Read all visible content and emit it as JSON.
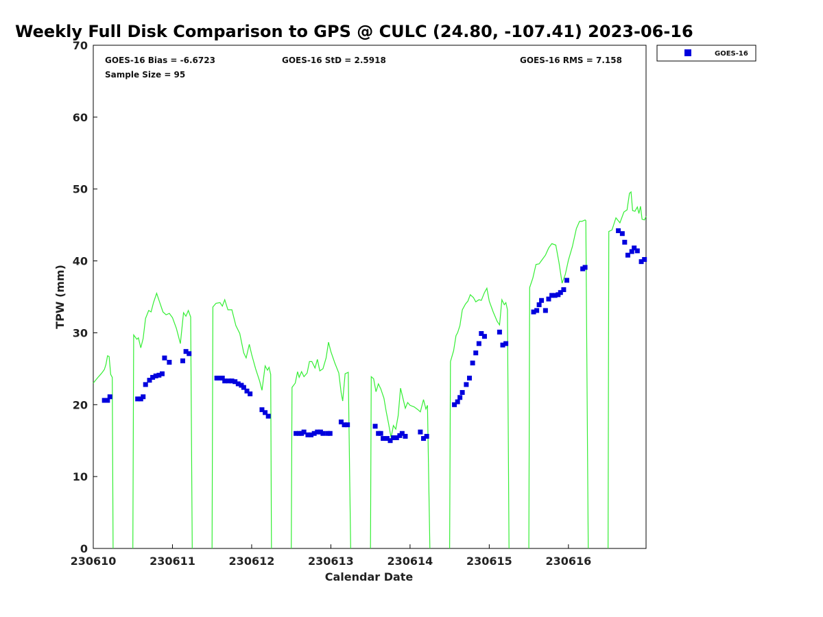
{
  "chart_data": {
    "type": "scatter",
    "title": "Weekly Full Disk Comparison to GPS @ CULC (24.80, -107.41) 2023-06-16",
    "xlabel": "Calendar Date",
    "ylabel": "TPW (mm)",
    "xlim": [
      0,
      6.98
    ],
    "ylim": [
      0,
      70
    ],
    "x_ticks": [
      {
        "value": 0,
        "label": "230610"
      },
      {
        "value": 1,
        "label": "230611"
      },
      {
        "value": 2,
        "label": "230612"
      },
      {
        "value": 3,
        "label": "230613"
      },
      {
        "value": 4,
        "label": "230614"
      },
      {
        "value": 5,
        "label": "230615"
      },
      {
        "value": 6,
        "label": "230616"
      }
    ],
    "y_ticks": [
      0,
      10,
      20,
      30,
      40,
      50,
      60,
      70
    ],
    "grid": false,
    "legend_position": "top-right, outside plot",
    "stats": {
      "bias": "GOES-16 Bias = -6.6723",
      "std": "GOES-16 StD = 2.5918",
      "rms": "GOES-16 RMS = 7.158",
      "sample_size": "Sample Size = 95"
    },
    "colors": {
      "goes": "#0000dd",
      "gps": "#33ee33"
    },
    "series": [
      {
        "name": "GOES-16",
        "kind": "scatter",
        "points": [
          [
            0.14,
            20.6
          ],
          [
            0.18,
            20.6
          ],
          [
            0.21,
            21.1
          ],
          [
            0.56,
            20.8
          ],
          [
            0.6,
            20.8
          ],
          [
            0.63,
            21.1
          ],
          [
            0.66,
            22.8
          ],
          [
            0.71,
            23.4
          ],
          [
            0.75,
            23.8
          ],
          [
            0.79,
            24
          ],
          [
            0.83,
            24.1
          ],
          [
            0.87,
            24.3
          ],
          [
            0.9,
            26.5
          ],
          [
            0.96,
            25.9
          ],
          [
            1.13,
            26.1
          ],
          [
            1.17,
            27.4
          ],
          [
            1.21,
            27.1
          ],
          [
            1.56,
            23.7
          ],
          [
            1.6,
            23.7
          ],
          [
            1.63,
            23.7
          ],
          [
            1.66,
            23.3
          ],
          [
            1.71,
            23.3
          ],
          [
            1.75,
            23.3
          ],
          [
            1.79,
            23.2
          ],
          [
            1.83,
            22.9
          ],
          [
            1.87,
            22.7
          ],
          [
            1.9,
            22.4
          ],
          [
            1.94,
            21.9
          ],
          [
            1.98,
            21.5
          ],
          [
            2.13,
            19.3
          ],
          [
            2.17,
            18.9
          ],
          [
            2.21,
            18.4
          ],
          [
            2.56,
            16
          ],
          [
            2.6,
            16
          ],
          [
            2.63,
            16
          ],
          [
            2.66,
            16.2
          ],
          [
            2.71,
            15.8
          ],
          [
            2.75,
            15.8
          ],
          [
            2.79,
            16
          ],
          [
            2.83,
            16.2
          ],
          [
            2.87,
            16.2
          ],
          [
            2.9,
            16
          ],
          [
            2.96,
            16
          ],
          [
            2.99,
            16
          ],
          [
            3.13,
            17.6
          ],
          [
            3.17,
            17.2
          ],
          [
            3.21,
            17.2
          ],
          [
            3.56,
            17
          ],
          [
            3.6,
            16
          ],
          [
            3.63,
            16
          ],
          [
            3.66,
            15.3
          ],
          [
            3.71,
            15.3
          ],
          [
            3.75,
            15
          ],
          [
            3.79,
            15.4
          ],
          [
            3.83,
            15.4
          ],
          [
            3.87,
            15.7
          ],
          [
            3.9,
            16
          ],
          [
            3.94,
            15.6
          ],
          [
            4.13,
            16.2
          ],
          [
            4.17,
            15.3
          ],
          [
            4.21,
            15.6
          ],
          [
            4.56,
            20
          ],
          [
            4.6,
            20.4
          ],
          [
            4.63,
            21
          ],
          [
            4.66,
            21.7
          ],
          [
            4.71,
            22.8
          ],
          [
            4.75,
            23.7
          ],
          [
            4.79,
            25.8
          ],
          [
            4.83,
            27.2
          ],
          [
            4.87,
            28.5
          ],
          [
            4.9,
            29.9
          ],
          [
            4.94,
            29.5
          ],
          [
            5.13,
            30.1
          ],
          [
            5.17,
            28.3
          ],
          [
            5.21,
            28.5
          ],
          [
            5.56,
            32.9
          ],
          [
            5.6,
            33.1
          ],
          [
            5.63,
            33.9
          ],
          [
            5.66,
            34.5
          ],
          [
            5.71,
            33.1
          ],
          [
            5.75,
            34.7
          ],
          [
            5.79,
            35.2
          ],
          [
            5.83,
            35.2
          ],
          [
            5.87,
            35.3
          ],
          [
            5.9,
            35.6
          ],
          [
            5.94,
            36
          ],
          [
            5.98,
            37.3
          ],
          [
            6.18,
            38.9
          ],
          [
            6.21,
            39.1
          ],
          [
            6.63,
            44.2
          ],
          [
            6.68,
            43.8
          ],
          [
            6.71,
            42.6
          ],
          [
            6.75,
            40.8
          ],
          [
            6.8,
            41.3
          ],
          [
            6.83,
            41.8
          ],
          [
            6.87,
            41.4
          ],
          [
            6.92,
            39.9
          ],
          [
            6.96,
            40.2
          ]
        ]
      },
      {
        "name": "",
        "kind": "line",
        "segments": [
          [
            [
              0,
              23
            ],
            [
              0.06,
              23.8
            ],
            [
              0.1,
              24.3
            ],
            [
              0.12,
              24.6
            ],
            [
              0.14,
              24.9
            ],
            [
              0.16,
              25.6
            ],
            [
              0.18,
              26.8
            ],
            [
              0.2,
              26.7
            ],
            [
              0.22,
              24.2
            ],
            [
              0.24,
              23.8
            ],
            [
              0.25,
              0
            ]
          ],
          [
            [
              0.5,
              0
            ],
            [
              0.51,
              29.7
            ],
            [
              0.55,
              29.1
            ],
            [
              0.57,
              29.3
            ],
            [
              0.6,
              27.9
            ],
            [
              0.63,
              29.2
            ],
            [
              0.66,
              32
            ],
            [
              0.7,
              33.1
            ],
            [
              0.73,
              32.9
            ],
            [
              0.76,
              34.2
            ],
            [
              0.8,
              35.5
            ],
            [
              0.84,
              34.2
            ],
            [
              0.88,
              32.9
            ],
            [
              0.92,
              32.5
            ],
            [
              0.96,
              32.7
            ],
            [
              1,
              32.1
            ],
            [
              1.05,
              30.6
            ],
            [
              1.1,
              28.5
            ],
            [
              1.14,
              32.8
            ],
            [
              1.17,
              32.3
            ],
            [
              1.2,
              33.1
            ],
            [
              1.23,
              32.2
            ],
            [
              1.25,
              0
            ]
          ],
          [
            [
              1.5,
              0
            ],
            [
              1.51,
              33.6
            ],
            [
              1.55,
              34.1
            ],
            [
              1.6,
              34.2
            ],
            [
              1.63,
              33.7
            ],
            [
              1.66,
              34.6
            ],
            [
              1.7,
              33.2
            ],
            [
              1.75,
              33.2
            ],
            [
              1.8,
              31
            ],
            [
              1.85,
              29.9
            ],
            [
              1.9,
              27.2
            ],
            [
              1.93,
              26.5
            ],
            [
              1.97,
              28.4
            ],
            [
              2,
              27
            ],
            [
              2.05,
              25
            ],
            [
              2.1,
              23.3
            ],
            [
              2.13,
              22
            ],
            [
              2.17,
              25.4
            ],
            [
              2.2,
              24.8
            ],
            [
              2.22,
              25.2
            ],
            [
              2.24,
              24.2
            ],
            [
              2.25,
              0
            ]
          ],
          [
            [
              2.5,
              0
            ],
            [
              2.51,
              22.4
            ],
            [
              2.55,
              23
            ],
            [
              2.58,
              24.6
            ],
            [
              2.6,
              23.8
            ],
            [
              2.63,
              24.6
            ],
            [
              2.66,
              23.9
            ],
            [
              2.7,
              24.4
            ],
            [
              2.73,
              26
            ],
            [
              2.76,
              26
            ],
            [
              2.8,
              25.1
            ],
            [
              2.83,
              26.3
            ],
            [
              2.86,
              24.7
            ],
            [
              2.9,
              25
            ],
            [
              2.94,
              26.5
            ],
            [
              2.97,
              28.7
            ],
            [
              3,
              27.4
            ],
            [
              3.05,
              25.8
            ],
            [
              3.1,
              24.4
            ],
            [
              3.13,
              21.7
            ],
            [
              3.15,
              20.5
            ],
            [
              3.18,
              24.3
            ],
            [
              3.22,
              24.5
            ],
            [
              3.25,
              0
            ]
          ],
          [
            [
              3.5,
              0
            ],
            [
              3.51,
              23.9
            ],
            [
              3.54,
              23.6
            ],
            [
              3.57,
              21.8
            ],
            [
              3.6,
              22.9
            ],
            [
              3.63,
              22.2
            ],
            [
              3.67,
              20.9
            ],
            [
              3.7,
              19
            ],
            [
              3.73,
              17.3
            ],
            [
              3.76,
              15.4
            ],
            [
              3.79,
              17.1
            ],
            [
              3.82,
              16.6
            ],
            [
              3.85,
              18.5
            ],
            [
              3.88,
              22.3
            ],
            [
              3.91,
              20.9
            ],
            [
              3.94,
              19.5
            ],
            [
              3.97,
              20.3
            ],
            [
              4,
              19.9
            ],
            [
              4.05,
              19.7
            ],
            [
              4.1,
              19.3
            ],
            [
              4.13,
              19
            ],
            [
              4.17,
              20.7
            ],
            [
              4.2,
              19.4
            ],
            [
              4.22,
              19.9
            ],
            [
              4.25,
              0
            ]
          ],
          [
            [
              4.5,
              0
            ],
            [
              4.51,
              26
            ],
            [
              4.55,
              27.5
            ],
            [
              4.58,
              29.6
            ],
            [
              4.6,
              30
            ],
            [
              4.63,
              31
            ],
            [
              4.66,
              33.2
            ],
            [
              4.7,
              34
            ],
            [
              4.73,
              34.4
            ],
            [
              4.76,
              35.3
            ],
            [
              4.8,
              34.9
            ],
            [
              4.83,
              34.3
            ],
            [
              4.87,
              34.6
            ],
            [
              4.9,
              34.5
            ],
            [
              4.94,
              35.6
            ],
            [
              4.97,
              36.2
            ],
            [
              5,
              34.4
            ],
            [
              5.05,
              32.9
            ],
            [
              5.1,
              31.6
            ],
            [
              5.13,
              31.1
            ],
            [
              5.16,
              34.6
            ],
            [
              5.19,
              33.9
            ],
            [
              5.21,
              34.2
            ],
            [
              5.23,
              33.2
            ],
            [
              5.25,
              0
            ]
          ],
          [
            [
              5.5,
              0
            ],
            [
              5.51,
              36.3
            ],
            [
              5.55,
              37.6
            ],
            [
              5.59,
              39.5
            ],
            [
              5.63,
              39.6
            ],
            [
              5.67,
              40.2
            ],
            [
              5.71,
              40.8
            ],
            [
              5.75,
              41.8
            ],
            [
              5.79,
              42.4
            ],
            [
              5.84,
              42.2
            ],
            [
              5.88,
              39.8
            ],
            [
              5.92,
              36.9
            ],
            [
              5.96,
              38.1
            ],
            [
              6,
              40.1
            ],
            [
              6.05,
              42
            ],
            [
              6.1,
              44.5
            ],
            [
              6.14,
              45.5
            ],
            [
              6.17,
              45.5
            ],
            [
              6.21,
              45.7
            ],
            [
              6.22,
              45.6
            ],
            [
              6.25,
              0
            ]
          ],
          [
            [
              6.5,
              0
            ],
            [
              6.51,
              44.1
            ],
            [
              6.55,
              44.3
            ],
            [
              6.6,
              46
            ],
            [
              6.65,
              45.3
            ],
            [
              6.7,
              46.8
            ],
            [
              6.74,
              47.1
            ],
            [
              6.77,
              49.4
            ],
            [
              6.79,
              49.6
            ],
            [
              6.81,
              47
            ],
            [
              6.84,
              46.9
            ],
            [
              6.87,
              47.5
            ],
            [
              6.89,
              46.6
            ],
            [
              6.91,
              47.6
            ],
            [
              6.93,
              45.8
            ],
            [
              6.96,
              45.7
            ],
            [
              6.98,
              46.2
            ]
          ]
        ]
      }
    ]
  }
}
